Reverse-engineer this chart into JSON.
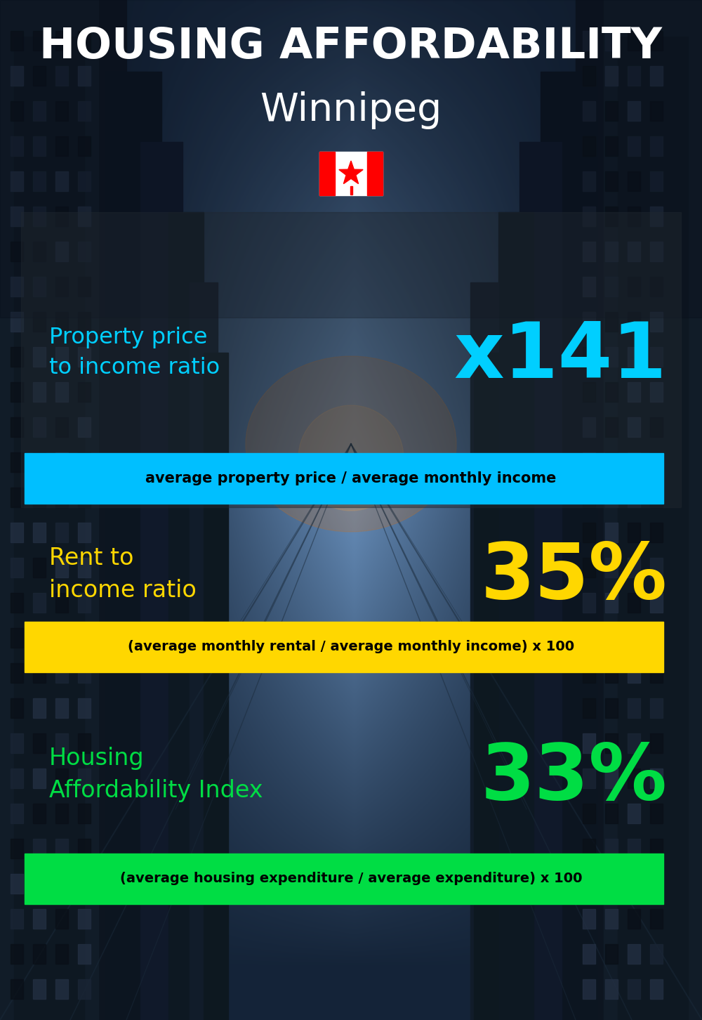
{
  "title_line1": "HOUSING AFFORDABILITY",
  "title_line2": "Winnipeg",
  "section1_label": "Property price\nto income ratio",
  "section1_value": "x141",
  "section1_sublabel": "average property price / average monthly income",
  "section1_label_color": "#00CFFF",
  "section1_value_color": "#00CFFF",
  "section1_bg_color": "#00BFFF",
  "section2_label": "Rent to\nincome ratio",
  "section2_value": "35%",
  "section2_sublabel": "(average monthly rental / average monthly income) x 100",
  "section2_label_color": "#FFD700",
  "section2_value_color": "#FFD700",
  "section2_bg_color": "#FFD700",
  "section3_label": "Housing\nAffordability Index",
  "section3_value": "33%",
  "section3_sublabel": "(average housing expenditure / average expenditure) x 100",
  "section3_label_color": "#00DD44",
  "section3_value_color": "#00DD44",
  "section3_bg_color": "#00DD44",
  "title_color": "#FFFFFF",
  "subtitle_color": "#FFFFFF",
  "background_color": "#080e1a"
}
